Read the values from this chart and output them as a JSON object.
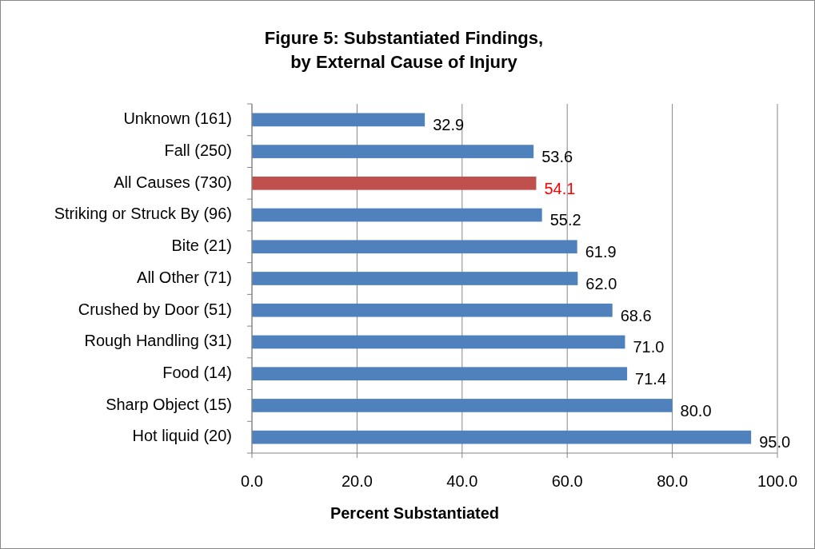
{
  "chart_data": {
    "type": "bar",
    "orientation": "horizontal",
    "title": "Figure 5: Substantiated Findings,\nby External Cause of Injury",
    "xlabel": "Percent Substantiated",
    "categories": [
      "Unknown (161)",
      "Fall (250)",
      "All Causes (730)",
      "Striking or Struck By (96)",
      "Bite (21)",
      "All Other (71)",
      "Crushed by Door (51)",
      "Rough Handling (31)",
      "Food (14)",
      "Sharp Object (15)",
      "Hot liquid (20)"
    ],
    "values": [
      32.9,
      53.6,
      54.1,
      55.2,
      61.9,
      62.0,
      68.6,
      71.0,
      71.4,
      80.0,
      95.0
    ],
    "value_labels": [
      "32.9",
      "53.6",
      "54.1",
      "55.2",
      "61.9",
      "62.0",
      "68.6",
      "71.0",
      "71.4",
      "80.0",
      "95.0"
    ],
    "colors": [
      "#4f81bd",
      "#4f81bd",
      "#c0504d",
      "#4f81bd",
      "#4f81bd",
      "#4f81bd",
      "#4f81bd",
      "#4f81bd",
      "#4f81bd",
      "#4f81bd",
      "#4f81bd"
    ],
    "xlim": [
      0,
      100
    ],
    "xticks": [
      {
        "value": 0,
        "label": "0.0"
      },
      {
        "value": 20,
        "label": "20.0"
      },
      {
        "value": 40,
        "label": "40.0"
      },
      {
        "value": 60,
        "label": "60.0"
      },
      {
        "value": 80,
        "label": "80.0"
      },
      {
        "value": 100,
        "label": "100.0"
      }
    ],
    "grid": "x"
  }
}
